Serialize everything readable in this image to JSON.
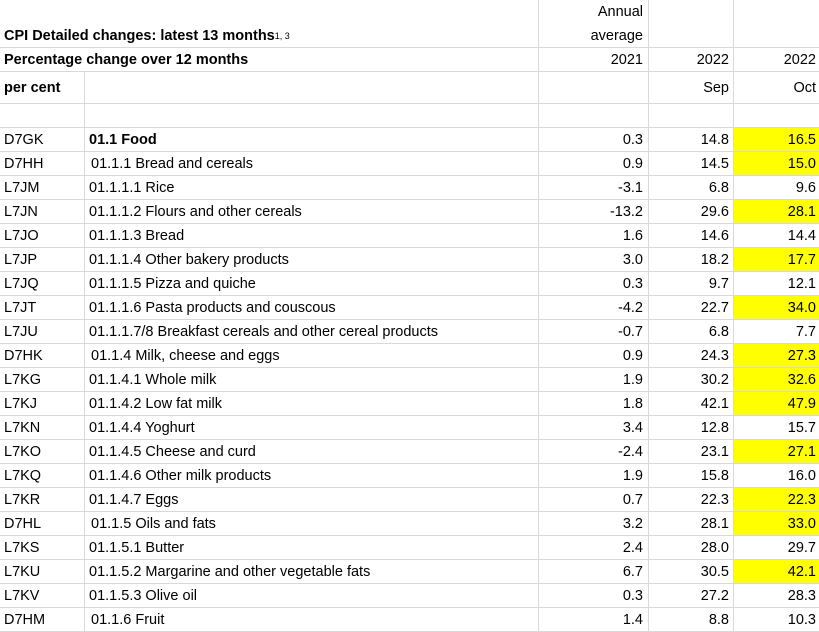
{
  "header": {
    "title": "CPI Detailed changes: latest 13 months",
    "title_sup": "1, 3",
    "subtitle": "Percentage change over 12 months",
    "unit": "per cent",
    "annual_label_1": "Annual",
    "annual_label_2": "average",
    "col_year_1": "2021",
    "col_year_2": "2022",
    "col_year_3": "2022",
    "col_month_2": "Sep",
    "col_month_3": "Oct"
  },
  "highlight_color": "#ffff00",
  "rows": [
    {
      "code": "D7GK",
      "desc": "01.1 Food",
      "annual": "0.3",
      "sep": "14.8",
      "oct": "16.5",
      "hl": true,
      "bold": true,
      "indent": false
    },
    {
      "code": "D7HH",
      "desc": "01.1.1 Bread and cereals",
      "annual": "0.9",
      "sep": "14.5",
      "oct": "15.0",
      "hl": true,
      "bold": false,
      "indent": true
    },
    {
      "code": "L7JM",
      "desc": "01.1.1.1 Rice",
      "annual": "-3.1",
      "sep": "6.8",
      "oct": "9.6",
      "hl": false,
      "bold": false,
      "indent": false
    },
    {
      "code": "L7JN",
      "desc": "01.1.1.2 Flours and other cereals",
      "annual": "-13.2",
      "sep": "29.6",
      "oct": "28.1",
      "hl": true,
      "bold": false,
      "indent": false
    },
    {
      "code": "L7JO",
      "desc": "01.1.1.3 Bread",
      "annual": "1.6",
      "sep": "14.6",
      "oct": "14.4",
      "hl": false,
      "bold": false,
      "indent": false
    },
    {
      "code": "L7JP",
      "desc": "01.1.1.4 Other bakery products",
      "annual": "3.0",
      "sep": "18.2",
      "oct": "17.7",
      "hl": true,
      "bold": false,
      "indent": false
    },
    {
      "code": "L7JQ",
      "desc": "01.1.1.5 Pizza and quiche",
      "annual": "0.3",
      "sep": "9.7",
      "oct": "12.1",
      "hl": false,
      "bold": false,
      "indent": false
    },
    {
      "code": "L7JT",
      "desc": "01.1.1.6 Pasta products and couscous",
      "annual": "-4.2",
      "sep": "22.7",
      "oct": "34.0",
      "hl": true,
      "bold": false,
      "indent": false
    },
    {
      "code": "L7JU",
      "desc": "01.1.1.7/8 Breakfast cereals and other cereal products",
      "annual": "-0.7",
      "sep": "6.8",
      "oct": "7.7",
      "hl": false,
      "bold": false,
      "indent": false
    },
    {
      "code": "D7HK",
      "desc": "01.1.4 Milk, cheese and eggs",
      "annual": "0.9",
      "sep": "24.3",
      "oct": "27.3",
      "hl": true,
      "bold": false,
      "indent": true
    },
    {
      "code": "L7KG",
      "desc": "01.1.4.1 Whole milk",
      "annual": "1.9",
      "sep": "30.2",
      "oct": "32.6",
      "hl": true,
      "bold": false,
      "indent": false
    },
    {
      "code": "L7KJ",
      "desc": "01.1.4.2 Low fat milk",
      "annual": "1.8",
      "sep": "42.1",
      "oct": "47.9",
      "hl": true,
      "bold": false,
      "indent": false
    },
    {
      "code": "L7KN",
      "desc": "01.1.4.4 Yoghurt",
      "annual": "3.4",
      "sep": "12.8",
      "oct": "15.7",
      "hl": false,
      "bold": false,
      "indent": false
    },
    {
      "code": "L7KO",
      "desc": "01.1.4.5 Cheese and curd",
      "annual": "-2.4",
      "sep": "23.1",
      "oct": "27.1",
      "hl": true,
      "bold": false,
      "indent": false
    },
    {
      "code": "L7KQ",
      "desc": "01.1.4.6 Other milk products",
      "annual": "1.9",
      "sep": "15.8",
      "oct": "16.0",
      "hl": false,
      "bold": false,
      "indent": false
    },
    {
      "code": "L7KR",
      "desc": "01.1.4.7 Eggs",
      "annual": "0.7",
      "sep": "22.3",
      "oct": "22.3",
      "hl": true,
      "bold": false,
      "indent": false
    },
    {
      "code": "D7HL",
      "desc": "01.1.5 Oils and fats",
      "annual": "3.2",
      "sep": "28.1",
      "oct": "33.0",
      "hl": true,
      "bold": false,
      "indent": true
    },
    {
      "code": "L7KS",
      "desc": "01.1.5.1 Butter",
      "annual": "2.4",
      "sep": "28.0",
      "oct": "29.7",
      "hl": false,
      "bold": false,
      "indent": false
    },
    {
      "code": "L7KU",
      "desc": "01.1.5.2 Margarine and other vegetable fats",
      "annual": "6.7",
      "sep": "30.5",
      "oct": "42.1",
      "hl": true,
      "bold": false,
      "indent": false
    },
    {
      "code": "L7KV",
      "desc": "01.1.5.3 Olive oil",
      "annual": "0.3",
      "sep": "27.2",
      "oct": "28.3",
      "hl": false,
      "bold": false,
      "indent": false
    },
    {
      "code": "D7HM",
      "desc": "01.1.6 Fruit",
      "annual": "1.4",
      "sep": "8.8",
      "oct": "10.3",
      "hl": false,
      "bold": false,
      "indent": true
    }
  ]
}
